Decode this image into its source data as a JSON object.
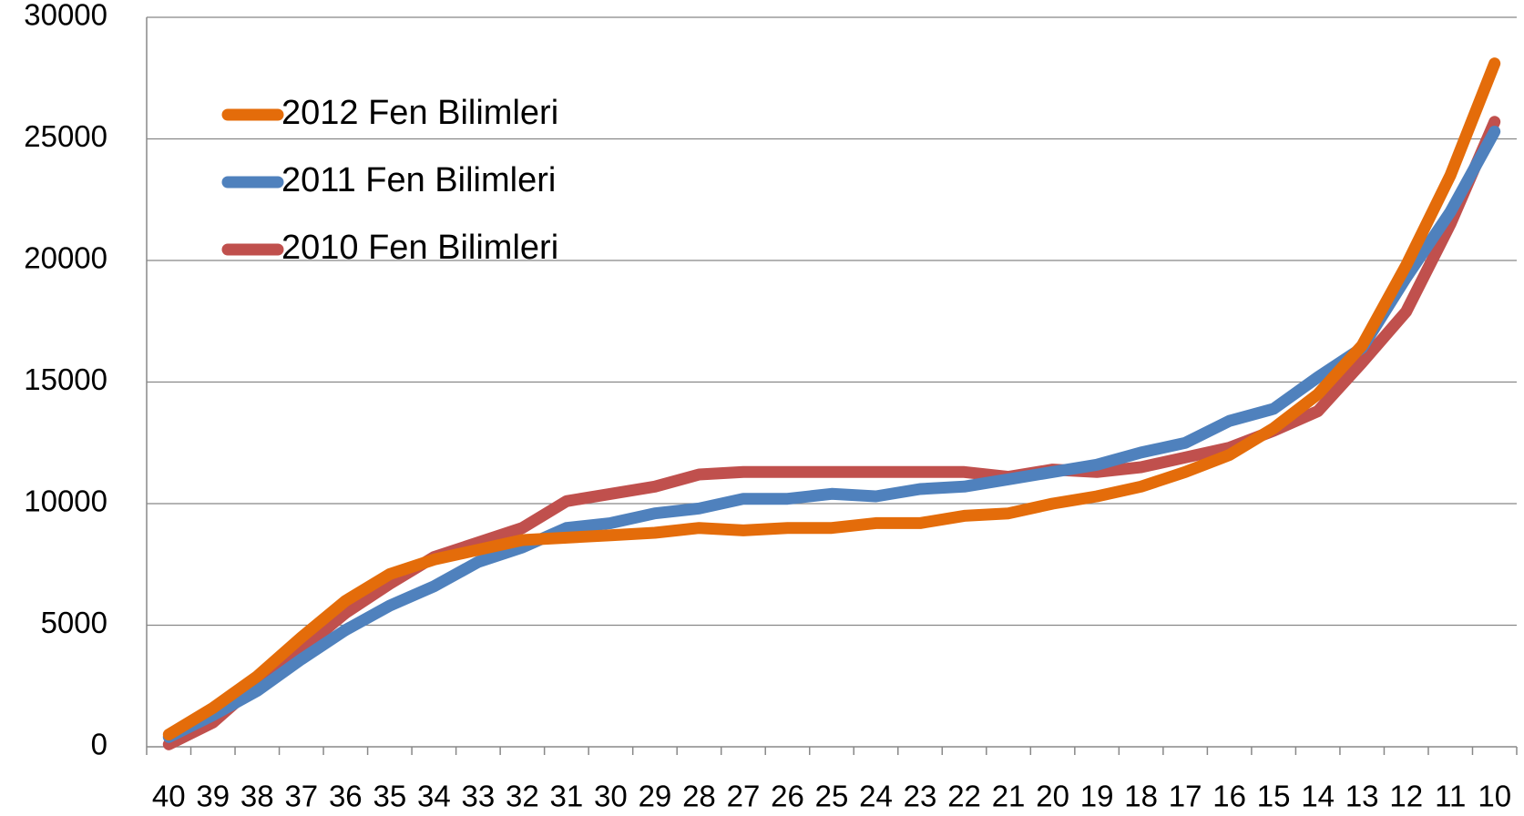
{
  "chart_data": {
    "type": "line",
    "categories": [
      "40",
      "39",
      "38",
      "37",
      "36",
      "35",
      "34",
      "33",
      "32",
      "31",
      "30",
      "29",
      "28",
      "27",
      "26",
      "25",
      "24",
      "23",
      "22",
      "21",
      "20",
      "19",
      "18",
      "17",
      "16",
      "15",
      "14",
      "13",
      "12",
      "11",
      "10"
    ],
    "series": [
      {
        "name": "2012 Fen Bilimleri",
        "color": "#e46c0a",
        "values": [
          500,
          1600,
          2900,
          4500,
          6000,
          7100,
          7700,
          8100,
          8500,
          8600,
          8700,
          8800,
          9000,
          8900,
          9000,
          9000,
          9200,
          9200,
          9500,
          9600,
          10000,
          10300,
          10700,
          11300,
          12000,
          13100,
          14500,
          16500,
          19800,
          23500,
          28100
        ]
      },
      {
        "name": "2011 Fen Bilimleri",
        "color": "#4f81bd",
        "values": [
          400,
          1300,
          2300,
          3600,
          4800,
          5800,
          6600,
          7600,
          8200,
          9000,
          9200,
          9600,
          9800,
          10200,
          10200,
          10400,
          10300,
          10600,
          10700,
          11000,
          11300,
          11600,
          12100,
          12500,
          13400,
          13900,
          15200,
          16400,
          19300,
          22000,
          25300
        ]
      },
      {
        "name": "2010 Fen Bilimleri",
        "color": "#c0504d",
        "values": [
          100,
          1000,
          2600,
          4000,
          5500,
          6700,
          7800,
          8400,
          9000,
          10100,
          10400,
          10700,
          11200,
          11300,
          11300,
          11300,
          11300,
          11300,
          11300,
          11100,
          11400,
          11300,
          11500,
          11900,
          12300,
          13000,
          13800,
          15800,
          17900,
          21500,
          25700
        ]
      }
    ],
    "ylim": [
      0,
      30000
    ],
    "yticks": [
      0,
      5000,
      10000,
      15000,
      20000,
      25000,
      30000
    ],
    "grid": true,
    "legend": "top-left"
  }
}
